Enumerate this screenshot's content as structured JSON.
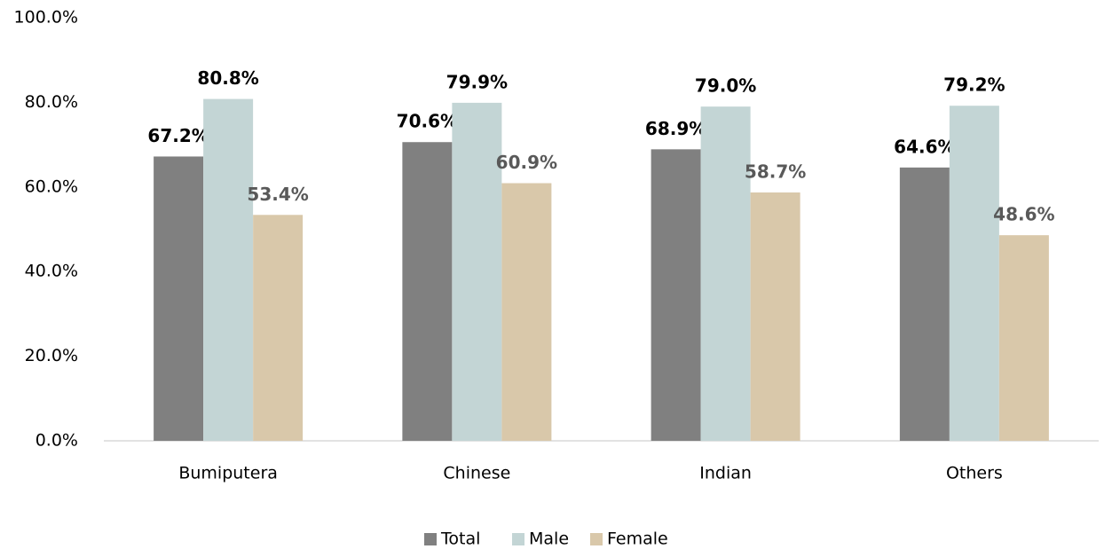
{
  "chart_data": {
    "type": "bar",
    "categories": [
      "Bumiputera",
      "Chinese",
      "Indian",
      "Others"
    ],
    "series": [
      {
        "name": "Total",
        "color": "#808080",
        "label_color": "#000000",
        "values": [
          67.2,
          70.6,
          68.9,
          64.6
        ],
        "value_labels": [
          "67.2%",
          "70.6%",
          "68.9%",
          "64.6%"
        ]
      },
      {
        "name": "Male",
        "color": "#c3d5d5",
        "label_color": "#000000",
        "values": [
          80.8,
          79.9,
          79.0,
          79.2
        ],
        "value_labels": [
          "80.8%",
          "79.9%",
          "79.0%",
          "79.2%"
        ]
      },
      {
        "name": "Female",
        "color": "#d9c8aa",
        "label_color": "#595959",
        "values": [
          53.4,
          60.9,
          58.7,
          48.6
        ],
        "value_labels": [
          "53.4%",
          "60.9%",
          "58.7%",
          "48.6%"
        ]
      }
    ],
    "ylim": [
      0,
      100
    ],
    "yticks": [
      {
        "value": 0,
        "label": "0.0%"
      },
      {
        "value": 20,
        "label": "20.0%"
      },
      {
        "value": 40,
        "label": "40.0%"
      },
      {
        "value": 60,
        "label": "60.0%"
      },
      {
        "value": 80,
        "label": "80.0%"
      },
      {
        "value": 100,
        "label": "100.0%"
      }
    ],
    "grid": false,
    "legend": "bottom"
  }
}
